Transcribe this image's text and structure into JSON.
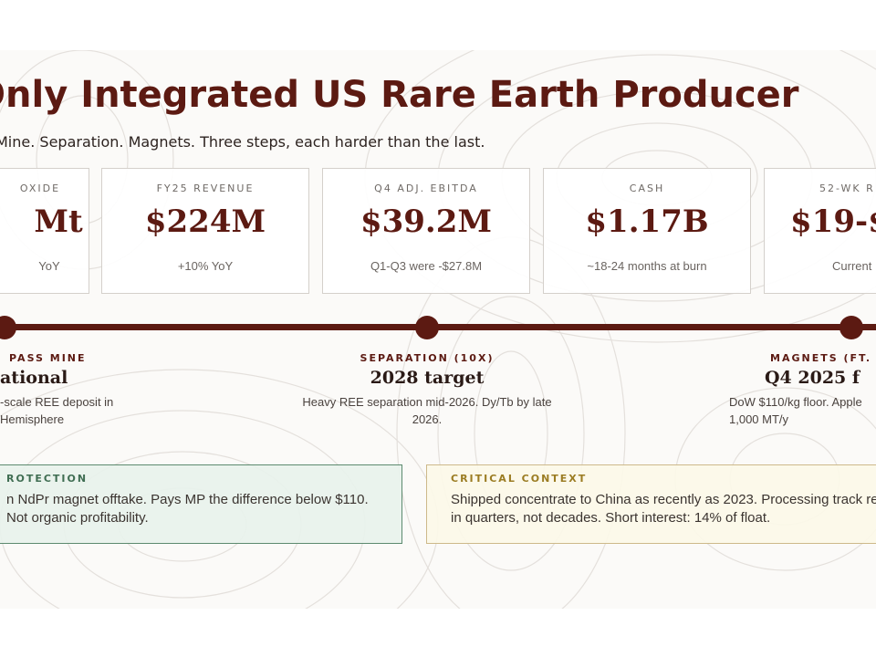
{
  "title": "Only Integrated US Rare Earth Producer",
  "subtitle": "Mine. Separation. Magnets. Three steps, each harder than the last.",
  "metrics": [
    {
      "label": "OXIDE",
      "value": "Mt",
      "note": "YoY"
    },
    {
      "label": "FY25 REVENUE",
      "value": "$224M",
      "note": "+10% YoY"
    },
    {
      "label": "Q4 ADJ. EBITDA",
      "value": "$39.2M",
      "note": "Q1-Q3 were -$27.8M"
    },
    {
      "label": "CASH",
      "value": "$1.17B",
      "note": "~18-24 months at burn"
    },
    {
      "label": "52-WK R",
      "value": "$19-$",
      "note": "Current"
    }
  ],
  "timeline": {
    "stages": [
      {
        "label": "PASS MINE",
        "value": "ational",
        "desc": "-scale REE deposit in Hemisphere"
      },
      {
        "label": "SEPARATION (10X)",
        "value": "2028 target",
        "desc": "Heavy REE separation mid-2026. Dy/Tb by late 2026."
      },
      {
        "label": "MAGNETS (FT.",
        "value": "Q4 2025 f",
        "desc": "DoW $110/kg floor. Apple 1,000 MT/y"
      }
    ]
  },
  "notes": {
    "protection": {
      "label": "ROTECTION",
      "text": "n NdPr magnet offtake. Pays MP the difference below $110.\nNot organic profitability."
    },
    "critical": {
      "label": "CRITICAL CONTEXT",
      "text": "Shipped concentrate to China as recently as 2023. Processing track re\nin quarters, not decades. Short interest: 14% of float."
    }
  },
  "colors": {
    "accent": "#5c1a12",
    "green": "#5c8a6f",
    "amber": "#cdb98a"
  }
}
